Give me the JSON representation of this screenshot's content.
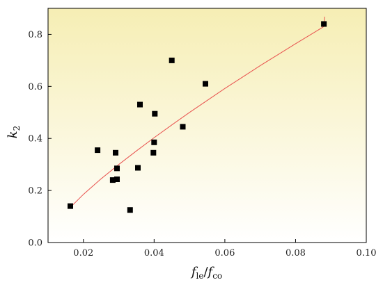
{
  "chart_data": {
    "type": "scatter",
    "xlabel": "f_le/f_co",
    "xlabel_parts": {
      "main": "f",
      "sub1": "le",
      "sep": "/",
      "main2": "f",
      "sub2": "co"
    },
    "ylabel": "k_2",
    "ylabel_parts": {
      "main": "k",
      "sub": "2"
    },
    "xlim": [
      0.01,
      0.1
    ],
    "ylim": [
      0.0,
      0.9
    ],
    "xticks": [
      0.02,
      0.04,
      0.06,
      0.08,
      0.1
    ],
    "xtick_labels": [
      "0.02",
      "0.04",
      "0.06",
      "0.08",
      "0.10"
    ],
    "yticks": [
      0.0,
      0.2,
      0.4,
      0.6,
      0.8
    ],
    "ytick_labels": [
      "0.0",
      "0.2",
      "0.4",
      "0.6",
      "0.8"
    ],
    "grid": false,
    "legend": "none",
    "background_gradient": [
      "#f6eeb4",
      "#ffffff"
    ],
    "series": [
      {
        "type": "scatter",
        "marker": "square",
        "color": "#000000",
        "points": [
          [
            0.0163,
            0.14
          ],
          [
            0.024,
            0.355
          ],
          [
            0.0283,
            0.24
          ],
          [
            0.0291,
            0.345
          ],
          [
            0.0295,
            0.285
          ],
          [
            0.0295,
            0.243
          ],
          [
            0.0332,
            0.125
          ],
          [
            0.0354,
            0.287
          ],
          [
            0.036,
            0.53
          ],
          [
            0.0398,
            0.345
          ],
          [
            0.04,
            0.385
          ],
          [
            0.0402,
            0.495
          ],
          [
            0.045,
            0.7
          ],
          [
            0.0481,
            0.445
          ],
          [
            0.0545,
            0.61
          ],
          [
            0.088,
            0.84
          ]
        ]
      },
      {
        "type": "line",
        "color": "#e8524f",
        "curve": [
          [
            0.0163,
            0.135
          ],
          [
            0.02,
            0.185
          ],
          [
            0.025,
            0.245
          ],
          [
            0.03,
            0.3
          ],
          [
            0.035,
            0.352
          ],
          [
            0.04,
            0.403
          ],
          [
            0.045,
            0.452
          ],
          [
            0.05,
            0.5
          ],
          [
            0.055,
            0.546
          ],
          [
            0.06,
            0.592
          ],
          [
            0.065,
            0.636
          ],
          [
            0.07,
            0.68
          ],
          [
            0.075,
            0.722
          ],
          [
            0.08,
            0.764
          ],
          [
            0.085,
            0.805
          ],
          [
            0.088,
            0.83
          ],
          [
            0.0882,
            0.868
          ]
        ]
      }
    ]
  }
}
